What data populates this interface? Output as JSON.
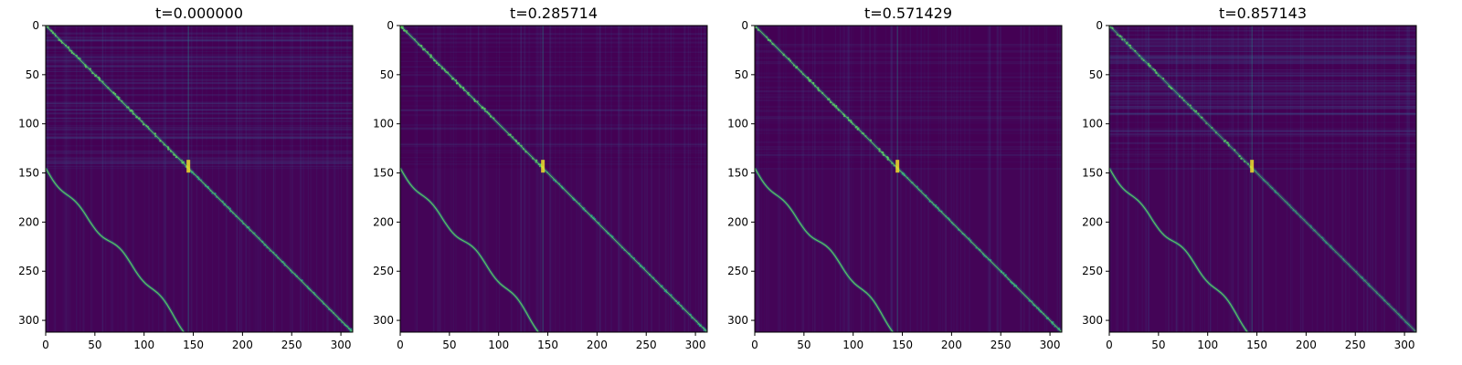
{
  "chart_data": [
    {
      "type": "heatmap",
      "title": "t=0.000000",
      "xlim": [
        0,
        312
      ],
      "ylim": [
        312,
        0
      ],
      "x_ticks": [
        "0",
        "50",
        "100",
        "150",
        "200",
        "250",
        "300"
      ],
      "y_ticks": [
        "0",
        "50",
        "100",
        "150",
        "200",
        "250",
        "300"
      ],
      "colormap": "viridis",
      "block_boundary": 145,
      "structure": {
        "main_diagonal": "y = x across full range",
        "off_diagonal": "bright line from (0,145) to (145,312)",
        "top_band_rows": [
          0,
          145
        ],
        "top_band_texture": "strong"
      }
    },
    {
      "type": "heatmap",
      "title": "t=0.285714",
      "xlim": [
        0,
        312
      ],
      "ylim": [
        312,
        0
      ],
      "x_ticks": [
        "0",
        "50",
        "100",
        "150",
        "200",
        "250",
        "300"
      ],
      "y_ticks": [
        "0",
        "50",
        "100",
        "150",
        "200",
        "250",
        "300"
      ],
      "colormap": "viridis",
      "block_boundary": 145,
      "structure": {
        "main_diagonal": "y = x across full range",
        "off_diagonal": "bright line from (0,145) to (145,312)",
        "top_band_rows": [
          0,
          145
        ],
        "top_band_texture": "moderate"
      }
    },
    {
      "type": "heatmap",
      "title": "t=0.571429",
      "xlim": [
        0,
        312
      ],
      "ylim": [
        312,
        0
      ],
      "x_ticks": [
        "0",
        "50",
        "100",
        "150",
        "200",
        "250",
        "300"
      ],
      "y_ticks": [
        "0",
        "50",
        "100",
        "150",
        "200",
        "250",
        "300"
      ],
      "colormap": "viridis",
      "block_boundary": 145,
      "structure": {
        "main_diagonal": "y = x across full range",
        "off_diagonal": "bright line from (0,145) to (145,312)",
        "top_band_rows": [
          0,
          145
        ],
        "top_band_texture": "moderate"
      }
    },
    {
      "type": "heatmap",
      "title": "t=0.857143",
      "xlim": [
        0,
        312
      ],
      "ylim": [
        312,
        0
      ],
      "x_ticks": [
        "0",
        "50",
        "100",
        "150",
        "200",
        "250",
        "300"
      ],
      "y_ticks": [
        "0",
        "50",
        "100",
        "150",
        "200",
        "250",
        "300"
      ],
      "colormap": "viridis",
      "block_boundary": 145,
      "structure": {
        "main_diagonal": "y = x, fainter after 145",
        "off_diagonal": "bright line from (0,145) to (145,312)",
        "top_band_rows": [
          0,
          145
        ],
        "top_band_texture": "strong"
      }
    }
  ],
  "colors": {
    "background": "#440154",
    "lower_block": "#45075a",
    "band_texture": "#3b528b",
    "diag_mid": "#21918c",
    "diag_bright": "#5ec962",
    "peak": "#fde725"
  }
}
